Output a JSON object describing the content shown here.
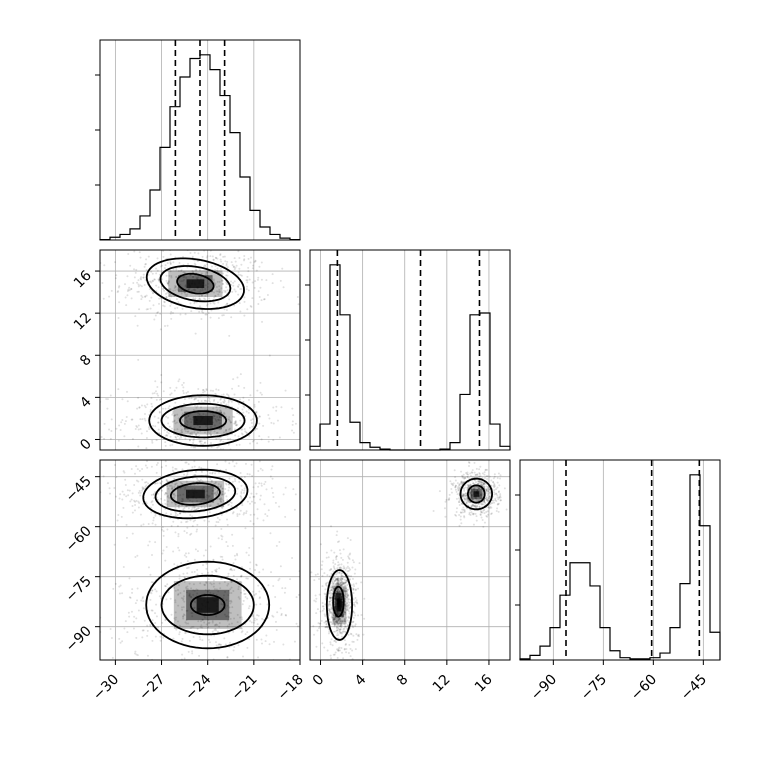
{
  "chart_data": {
    "type": "corner",
    "grid": true,
    "parameters": [
      {
        "range": [
          -31,
          -18
        ],
        "ticks": [
          -30,
          -27,
          -24,
          -21,
          -18
        ],
        "tick_labels": [
          "−30",
          "−27",
          "−24",
          "−21",
          "−18"
        ],
        "quantiles": [
          -26.1,
          -24.5,
          -22.9
        ],
        "hist_bins": [
          -31,
          -30.35,
          -29.7,
          -29.05,
          -28.4,
          -27.75,
          -27.1,
          -26.45,
          -25.8,
          -25.15,
          -24.5,
          -23.85,
          -23.2,
          -22.55,
          -21.9,
          -21.25,
          -20.6,
          -19.95,
          -19.3,
          -18.65,
          -18
        ],
        "hist_counts": [
          0.2,
          1.5,
          3,
          6,
          13,
          27,
          50,
          72,
          88,
          98,
          100,
          92,
          78,
          58,
          34,
          16,
          7,
          3,
          1,
          0.2
        ]
      },
      {
        "range": [
          -1,
          18
        ],
        "ticks": [
          0,
          4,
          8,
          12,
          16
        ],
        "tick_labels": [
          "0",
          "4",
          "8",
          "12",
          "16"
        ],
        "quantiles": [
          1.6,
          9.5,
          15.1
        ],
        "hist_bins": [
          -1,
          -0.05,
          0.9,
          1.85,
          2.8,
          3.75,
          4.7,
          5.65,
          6.6,
          7.55,
          8.5,
          9.45,
          10.4,
          11.35,
          12.3,
          13.25,
          14.2,
          15.15,
          16.1,
          17.05,
          18
        ],
        "hist_counts": [
          2,
          14,
          100,
          73,
          15,
          4,
          1.5,
          0.5,
          0,
          0,
          0,
          0,
          0,
          0.5,
          4,
          30,
          73,
          74,
          14,
          2
        ]
      },
      {
        "range": [
          -100,
          -40
        ],
        "ticks": [
          -90,
          -75,
          -60,
          -45
        ],
        "tick_labels": [
          "−90",
          "−75",
          "−60",
          "−45"
        ],
        "quantiles": [
          -86.2,
          -60.5,
          -46.2
        ],
        "hist_bins": [
          -100,
          -97,
          -94,
          -91,
          -88,
          -85,
          -82,
          -79,
          -76,
          -73,
          -70,
          -67,
          -64,
          -61,
          -58,
          -55,
          -52,
          -49,
          -46,
          -43,
          -40
        ],
        "hist_counts": [
          0.5,
          2,
          6,
          14,
          28,
          42,
          42,
          32,
          14,
          4,
          1,
          0.5,
          0.5,
          1,
          3,
          14,
          33,
          80,
          58,
          12
        ]
      }
    ],
    "contours_1_0": [
      {
        "center": [
          -24.8,
          14.8
        ],
        "radius": [
          1.2,
          0.9
        ],
        "angle": -10
      },
      {
        "center": [
          -24.8,
          14.8
        ],
        "radius": [
          2.3,
          1.6
        ],
        "angle": -10
      },
      {
        "center": [
          -24.8,
          14.8
        ],
        "radius": [
          3.2,
          2.3
        ],
        "angle": -10
      },
      {
        "center": [
          -24.3,
          1.8
        ],
        "radius": [
          1.5,
          0.9
        ],
        "angle": 0
      },
      {
        "center": [
          -24.3,
          1.8
        ],
        "radius": [
          2.7,
          1.6
        ],
        "angle": 0
      },
      {
        "center": [
          -24.3,
          1.8
        ],
        "radius": [
          3.5,
          2.4
        ],
        "angle": 0
      }
    ],
    "contours_2_0": [
      {
        "center": [
          -24.8,
          -50.2
        ],
        "radius": [
          1.6,
          3.2
        ],
        "angle": 5
      },
      {
        "center": [
          -24.8,
          -50.2
        ],
        "radius": [
          2.6,
          5.2
        ],
        "angle": 5
      },
      {
        "center": [
          -24.8,
          -50.2
        ],
        "radius": [
          3.4,
          7.2
        ],
        "angle": 5
      },
      {
        "center": [
          -24.0,
          -83.5
        ],
        "radius": [
          1.1,
          3.0
        ],
        "angle": 0
      },
      {
        "center": [
          -24.0,
          -83.5
        ],
        "radius": [
          3.0,
          8.8
        ],
        "angle": 0
      },
      {
        "center": [
          -24.0,
          -83.5
        ],
        "radius": [
          4.0,
          13.0
        ],
        "angle": 0
      }
    ],
    "contours_2_1": [
      {
        "center": [
          1.7,
          -82.5
        ],
        "radius": [
          0.5,
          4.5
        ],
        "angle": 0
      },
      {
        "center": [
          1.8,
          -83.5
        ],
        "radius": [
          1.2,
          10.5
        ],
        "angle": 0
      },
      {
        "center": [
          14.8,
          -50.2
        ],
        "radius": [
          0.8,
          2.6
        ],
        "angle": 0
      },
      {
        "center": [
          14.8,
          -50.2
        ],
        "radius": [
          1.5,
          4.6
        ],
        "angle": 0
      }
    ]
  }
}
